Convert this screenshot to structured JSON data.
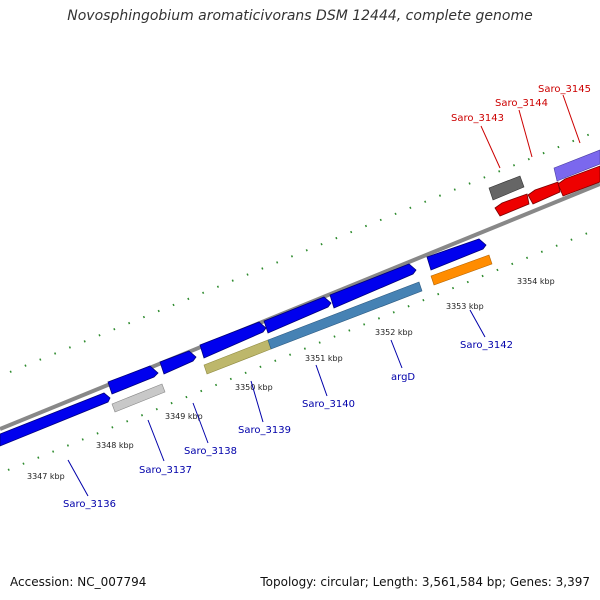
{
  "title": "Novosphingobium aromaticivorans DSM 12444, complete genome",
  "footer": {
    "accession": "Accession: NC_007794",
    "summary": "Topology: circular; Length: 3,561,584 bp; Genes: 3,397"
  },
  "colors": {
    "forward_gene": "#0000ee",
    "reverse_gene": "#ee0000",
    "axis": "#888888",
    "tick": "#2e8b2e",
    "label_forward": "#0000aa",
    "label_reverse": "#cc0000"
  },
  "ticks": [
    "3347 kbp",
    "3348 kbp",
    "3349 kbp",
    "3350 kbp",
    "3351 kbp",
    "3352 kbp",
    "3353 kbp",
    "3354 kbp"
  ],
  "gene_labels": [
    {
      "text": "Saro_3136",
      "strand": "forward"
    },
    {
      "text": "Saro_3137",
      "strand": "forward"
    },
    {
      "text": "Saro_3138",
      "strand": "forward"
    },
    {
      "text": "Saro_3139",
      "strand": "forward"
    },
    {
      "text": "Saro_3140",
      "strand": "forward"
    },
    {
      "text": "argD",
      "strand": "forward"
    },
    {
      "text": "Saro_3142",
      "strand": "forward"
    },
    {
      "text": "Saro_3143",
      "strand": "reverse"
    },
    {
      "text": "Saro_3144",
      "strand": "reverse"
    },
    {
      "text": "Saro_3145",
      "strand": "reverse"
    }
  ]
}
